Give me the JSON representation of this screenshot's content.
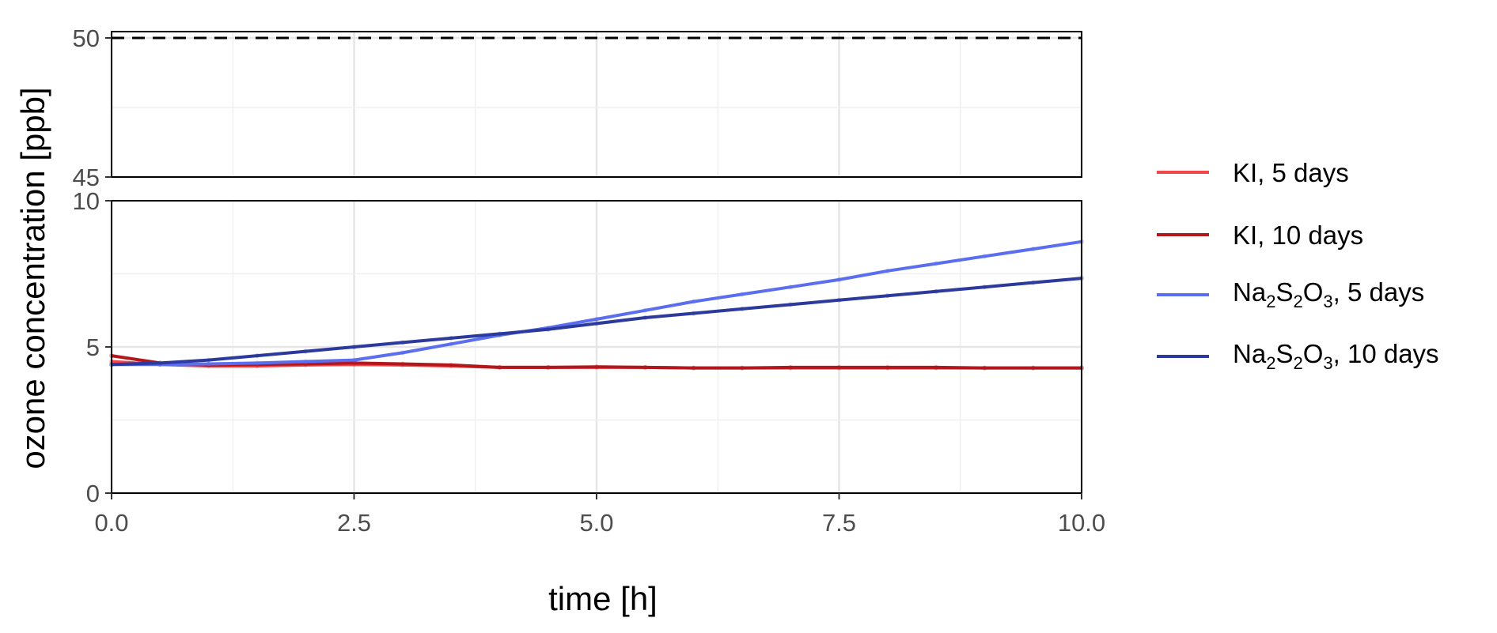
{
  "chart_data": {
    "type": "line",
    "xlabel": "time [h]",
    "ylabel": "ozone concentration [ppb]",
    "x_ticks": [
      "0.0",
      "2.5",
      "5.0",
      "7.5",
      "10.0"
    ],
    "xlim": [
      0,
      10
    ],
    "grid": true,
    "legend_position": "right",
    "panels": [
      {
        "ylim": [
          45,
          50
        ],
        "y_ticks": [
          "45",
          "50"
        ],
        "reference_line": {
          "y": 50,
          "style": "dashed"
        }
      },
      {
        "ylim": [
          0,
          10
        ],
        "y_ticks": [
          "0",
          "5",
          "10"
        ]
      }
    ],
    "series": [
      {
        "name": "KI, 5 days",
        "color": "#f0474b",
        "x": [
          0,
          0.5,
          1,
          1.5,
          2,
          2.5,
          3,
          3.5,
          4,
          4.5,
          5,
          5.5,
          6,
          6.5,
          7,
          7.5,
          8,
          8.5,
          9,
          9.5,
          10
        ],
        "y": [
          4.5,
          4.4,
          4.35,
          4.35,
          4.38,
          4.4,
          4.38,
          4.35,
          4.3,
          4.3,
          4.3,
          4.3,
          4.28,
          4.28,
          4.28,
          4.28,
          4.28,
          4.28,
          4.28,
          4.28,
          4.28
        ]
      },
      {
        "name": "KI, 10 days",
        "color": "#b2181b",
        "x": [
          0,
          0.5,
          1,
          1.5,
          2,
          2.5,
          3,
          3.5,
          4,
          4.5,
          5,
          5.5,
          6,
          6.5,
          7,
          7.5,
          8,
          8.5,
          9,
          9.5,
          10
        ],
        "y": [
          4.7,
          4.45,
          4.38,
          4.4,
          4.42,
          4.45,
          4.42,
          4.38,
          4.3,
          4.3,
          4.32,
          4.3,
          4.28,
          4.28,
          4.3,
          4.3,
          4.3,
          4.3,
          4.28,
          4.28,
          4.28
        ]
      },
      {
        "name": "Na₂S₂O₃, 5 days",
        "label_parts": {
          "a": "Na",
          "s1": "2",
          "b": "S",
          "s2": "2",
          "c": "O",
          "s3": "3",
          "d": ", 5 days"
        },
        "color": "#5b6ef0",
        "x": [
          0,
          0.5,
          1,
          1.5,
          2,
          2.5,
          3,
          3.5,
          4,
          4.5,
          5,
          5.5,
          6,
          6.5,
          7,
          7.5,
          8,
          8.5,
          9,
          9.5,
          10
        ],
        "y": [
          4.4,
          4.4,
          4.42,
          4.45,
          4.5,
          4.55,
          4.8,
          5.1,
          5.4,
          5.65,
          5.95,
          6.25,
          6.55,
          6.8,
          7.05,
          7.3,
          7.6,
          7.85,
          8.1,
          8.35,
          8.6
        ]
      },
      {
        "name": "Na₂S₂O₃, 10 days",
        "label_parts": {
          "a": "Na",
          "s1": "2",
          "b": "S",
          "s2": "2",
          "c": "O",
          "s3": "3",
          "d": ", 10 days"
        },
        "color": "#2b3a9c",
        "x": [
          0,
          0.5,
          1,
          1.5,
          2,
          2.5,
          3,
          3.5,
          4,
          4.5,
          5,
          5.5,
          6,
          6.5,
          7,
          7.5,
          8,
          8.5,
          9,
          9.5,
          10
        ],
        "y": [
          4.4,
          4.45,
          4.55,
          4.7,
          4.85,
          5.0,
          5.15,
          5.3,
          5.45,
          5.6,
          5.8,
          6.0,
          6.15,
          6.3,
          6.45,
          6.6,
          6.75,
          6.9,
          7.05,
          7.2,
          7.35
        ]
      }
    ]
  }
}
